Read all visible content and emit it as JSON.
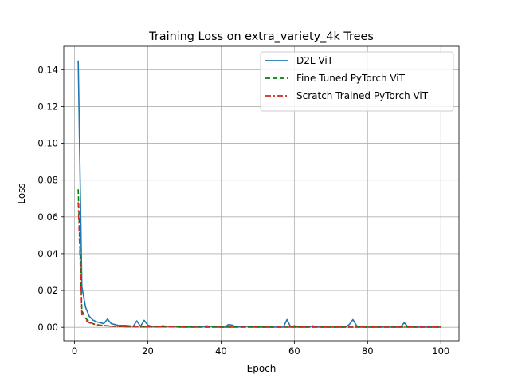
{
  "chart_data": {
    "type": "line",
    "title": "Training Loss on extra_variety_4k Trees",
    "xlabel": "Epoch",
    "ylabel": "Loss",
    "xlim": [
      -2.95,
      104.95
    ],
    "ylim": [
      -0.0073,
      0.1527
    ],
    "xticks": [
      0,
      20,
      40,
      60,
      80,
      100
    ],
    "xtick_labels": [
      "0",
      "20",
      "40",
      "60",
      "80",
      "100"
    ],
    "yticks": [
      0.0,
      0.02,
      0.04,
      0.06,
      0.08,
      0.1,
      0.12,
      0.14
    ],
    "ytick_labels": [
      "0.00",
      "0.02",
      "0.04",
      "0.06",
      "0.08",
      "0.10",
      "0.12",
      "0.14"
    ],
    "grid": true,
    "legend_position": "top-right",
    "series": [
      {
        "name": "D2L ViT",
        "color": "#1f77b4",
        "dash": "solid",
        "x": [
          1,
          2,
          3,
          4,
          5,
          6,
          7,
          8,
          9,
          10,
          11,
          12,
          13,
          14,
          15,
          16,
          17,
          18,
          19,
          20,
          21,
          22,
          23,
          24,
          25,
          26,
          27,
          28,
          29,
          30,
          31,
          32,
          33,
          34,
          35,
          36,
          37,
          38,
          39,
          40,
          41,
          42,
          43,
          44,
          45,
          46,
          47,
          48,
          49,
          50,
          51,
          52,
          53,
          54,
          55,
          56,
          57,
          58,
          59,
          60,
          61,
          62,
          63,
          64,
          65,
          66,
          67,
          68,
          69,
          70,
          71,
          72,
          73,
          74,
          75,
          76,
          77,
          78,
          79,
          80,
          81,
          82,
          83,
          84,
          85,
          86,
          87,
          88,
          89,
          90,
          91,
          92,
          93,
          94,
          95,
          96,
          97,
          98,
          99,
          100
        ],
        "y": [
          0.145,
          0.022,
          0.011,
          0.006,
          0.004,
          0.003,
          0.0025,
          0.002,
          0.0045,
          0.002,
          0.0015,
          0.001,
          0.001,
          0.001,
          0.0008,
          0.0005,
          0.0035,
          0.0005,
          0.0038,
          0.0012,
          0.0005,
          0.0004,
          0.0003,
          0.0008,
          0.0006,
          0.0004,
          0.0003,
          0.0003,
          0.0002,
          0.0002,
          0.0002,
          0.0002,
          0.0002,
          0.0002,
          0.0002,
          0.0008,
          0.0005,
          0.0003,
          0.0002,
          0.0001,
          0.0001,
          0.0015,
          0.0012,
          0.0003,
          0.0002,
          0.0002,
          0.0006,
          0.0002,
          0.0002,
          0.0002,
          0.0001,
          0.0001,
          0.0001,
          0.0001,
          0.0001,
          0.0001,
          0.0001,
          0.0042,
          0.0002,
          0.0008,
          0.0002,
          0.0001,
          0.0001,
          0.0001,
          0.0008,
          0.0002,
          0.0001,
          0.0001,
          0.0001,
          0.0001,
          0.0001,
          0.0001,
          0.0001,
          0.0001,
          0.0015,
          0.0042,
          0.0008,
          0.0002,
          0.0001,
          0.0001,
          0.0001,
          0.0001,
          0.0001,
          0.0001,
          0.0002,
          0.0001,
          0.0001,
          0.0001,
          0.0001,
          0.0025,
          0.0002,
          0.0001,
          0.0001,
          0.0001,
          0.0001,
          0.0001,
          0.0001,
          0.0001,
          0.0001,
          0.0001
        ]
      },
      {
        "name": "Fine Tuned PyTorch ViT",
        "color": "#008000",
        "dash": "dashed",
        "x": [
          1,
          2,
          3,
          4,
          5,
          6,
          7,
          8,
          9,
          10,
          11,
          12,
          13,
          14,
          15,
          16,
          17,
          18,
          19,
          20,
          21,
          22,
          23,
          24,
          25,
          26,
          27,
          28,
          29,
          30,
          31,
          32,
          33,
          34,
          35,
          36,
          37,
          38,
          39,
          40,
          41,
          42,
          43,
          44,
          45,
          46,
          47,
          48,
          49,
          50,
          51,
          52,
          53,
          54,
          55,
          56,
          57,
          58,
          59,
          60,
          61,
          62,
          63,
          64,
          65,
          66,
          67,
          68,
          69,
          70,
          71,
          72,
          73,
          74,
          75,
          76,
          77,
          78,
          79,
          80,
          81,
          82,
          83,
          84,
          85,
          86,
          87,
          88,
          89,
          90,
          91,
          92,
          93,
          94,
          95,
          96,
          97,
          98,
          99,
          100
        ],
        "y": [
          0.075,
          0.009,
          0.005,
          0.003,
          0.002,
          0.0015,
          0.0012,
          0.001,
          0.0008,
          0.0006,
          0.0005,
          0.0004,
          0.0004,
          0.0003,
          0.0003,
          0.0003,
          0.0003,
          0.0002,
          0.0002,
          0.0002,
          0.0002,
          0.0002,
          0.0002,
          0.0002,
          0.0002,
          0.0002,
          0.0002,
          0.0002,
          0.0001,
          0.0001,
          0.0001,
          0.0001,
          0.0001,
          0.0001,
          0.0001,
          0.0001,
          0.0001,
          0.0001,
          0.0001,
          0.0001,
          0.0001,
          0.0001,
          0.0001,
          0.0001,
          0.0001,
          0.0001,
          0.0001,
          0.0001,
          0.0001,
          0.0001,
          0.0001,
          0.0001,
          0.0001,
          0.0001,
          0.0001,
          0.0001,
          0.0001,
          0.0001,
          0.0001,
          0.0001,
          0.0001,
          0.0001,
          0.0001,
          0.0001,
          0.0001,
          0.0001,
          0.0001,
          0.0001,
          0.0001,
          0.0001,
          0.0001,
          0.0001,
          0.0001,
          0.0001,
          0.0001,
          0.0001,
          0.0001,
          0.0001,
          0.0001,
          0.0001,
          0.0001,
          0.0001,
          0.0001,
          0.0001,
          0.0001,
          0.0001,
          0.0001,
          0.0001,
          0.0001,
          0.0001,
          0.0001,
          0.0001,
          0.0001,
          0.0001,
          0.0001,
          0.0001,
          0.0001,
          0.0001,
          0.0001,
          0.0001
        ]
      },
      {
        "name": "Scratch Trained PyTorch ViT",
        "color": "#d62728",
        "dash": "dashdot",
        "x": [
          1,
          2,
          3,
          4,
          5,
          6,
          7,
          8,
          9,
          10,
          11,
          12,
          13,
          14,
          15,
          16,
          17,
          18,
          19,
          20,
          21,
          22,
          23,
          24,
          25,
          26,
          27,
          28,
          29,
          30,
          31,
          32,
          33,
          34,
          35,
          36,
          37,
          38,
          39,
          40,
          41,
          42,
          43,
          44,
          45,
          46,
          47,
          48,
          49,
          50,
          51,
          52,
          53,
          54,
          55,
          56,
          57,
          58,
          59,
          60,
          61,
          62,
          63,
          64,
          65,
          66,
          67,
          68,
          69,
          70,
          71,
          72,
          73,
          74,
          75,
          76,
          77,
          78,
          79,
          80,
          81,
          82,
          83,
          84,
          85,
          86,
          87,
          88,
          89,
          90,
          91,
          92,
          93,
          94,
          95,
          96,
          97,
          98,
          99,
          100
        ],
        "y": [
          0.068,
          0.007,
          0.004,
          0.0025,
          0.0018,
          0.0014,
          0.0011,
          0.0009,
          0.0007,
          0.0006,
          0.0005,
          0.0004,
          0.0004,
          0.0003,
          0.0003,
          0.0003,
          0.0003,
          0.0002,
          0.0002,
          0.0002,
          0.0002,
          0.0002,
          0.0002,
          0.0002,
          0.0002,
          0.0002,
          0.0002,
          0.0002,
          0.0001,
          0.0001,
          0.0001,
          0.0001,
          0.0001,
          0.0001,
          0.0001,
          0.0001,
          0.0001,
          0.0001,
          0.0001,
          0.0001,
          0.0001,
          0.0001,
          0.0001,
          0.0001,
          0.0001,
          0.0001,
          0.0001,
          0.0001,
          0.0001,
          0.0001,
          0.0001,
          0.0001,
          0.0001,
          0.0001,
          0.0001,
          0.0001,
          0.0001,
          0.0001,
          0.0001,
          0.0001,
          0.0001,
          0.0001,
          0.0001,
          0.0001,
          0.0001,
          0.0001,
          0.0001,
          0.0001,
          0.0001,
          0.0001,
          0.0001,
          0.0001,
          0.0001,
          0.0001,
          0.0001,
          0.0001,
          0.0001,
          0.0001,
          0.0001,
          0.0001,
          0.0001,
          0.0001,
          0.0001,
          0.0001,
          0.0001,
          0.0001,
          0.0001,
          0.0001,
          0.0001,
          0.0001,
          0.0001,
          0.0001,
          0.0001,
          0.0001,
          0.0001,
          0.0001,
          0.0001,
          0.0001,
          0.0001,
          0.0001
        ]
      }
    ]
  }
}
